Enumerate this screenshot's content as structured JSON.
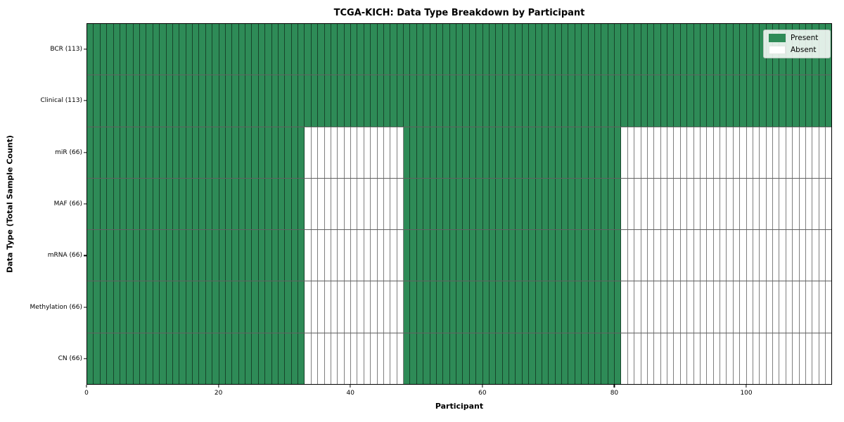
{
  "title": "TCGA-KICH: Data Type Breakdown by Participant",
  "x_axis_label": "Participant",
  "y_axis_label": "Data Type (Total Sample Count)",
  "legend": {
    "present_label": "Present",
    "absent_label": "Absent"
  },
  "colors": {
    "present": "#2e8b57",
    "absent": "#ffffff",
    "cell_edge": "rgba(0,0,0,0.5)",
    "plot_border": "#000000"
  },
  "chart_data": {
    "type": "heatmap",
    "title": "TCGA-KICH: Data Type Breakdown by Participant",
    "xlabel": "Participant",
    "ylabel": "Data Type (Total Sample Count)",
    "legend_entries": [
      "Present",
      "Absent"
    ],
    "legend_position": "upper right",
    "total_participants": 113,
    "x_ticks": [
      0,
      20,
      40,
      60,
      80,
      100
    ],
    "xlim": [
      0,
      113
    ],
    "grid": false,
    "rows": [
      {
        "label": "BCR (113)",
        "data_type": "BCR",
        "sample_count": 113,
        "present_ranges": [
          [
            0,
            113
          ]
        ]
      },
      {
        "label": "Clinical (113)",
        "data_type": "Clinical",
        "sample_count": 113,
        "present_ranges": [
          [
            0,
            113
          ]
        ]
      },
      {
        "label": "miR (66)",
        "data_type": "miR",
        "sample_count": 66,
        "present_ranges": [
          [
            0,
            33
          ],
          [
            48,
            81
          ]
        ]
      },
      {
        "label": "MAF (66)",
        "data_type": "MAF",
        "sample_count": 66,
        "present_ranges": [
          [
            0,
            33
          ],
          [
            48,
            81
          ]
        ]
      },
      {
        "label": "mRNA (66)",
        "data_type": "mRNA",
        "sample_count": 66,
        "present_ranges": [
          [
            0,
            33
          ],
          [
            48,
            81
          ]
        ]
      },
      {
        "label": "Methylation (66)",
        "data_type": "Methylation",
        "sample_count": 66,
        "present_ranges": [
          [
            0,
            33
          ],
          [
            48,
            81
          ]
        ]
      },
      {
        "label": "CN (66)",
        "data_type": "CN",
        "sample_count": 66,
        "present_ranges": [
          [
            0,
            33
          ],
          [
            48,
            81
          ]
        ]
      }
    ]
  }
}
